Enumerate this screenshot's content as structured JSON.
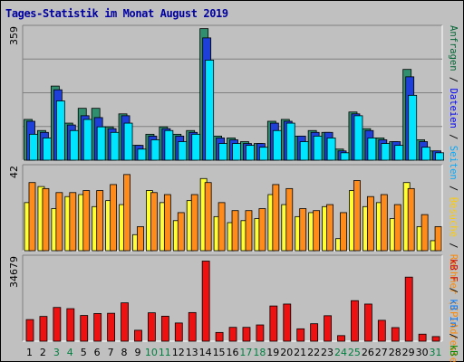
{
  "title": "Tages-Statistik im Monat August 2019",
  "right_legend": {
    "panel1": [
      {
        "label": "Anfragen",
        "color": "#006633"
      },
      {
        "label": " / ",
        "color": "#000000"
      },
      {
        "label": "Dateien",
        "color": "#0000ff"
      },
      {
        "label": " / ",
        "color": "#000000"
      },
      {
        "label": "Seiten",
        "color": "#00aaff"
      },
      {
        "label": " / ",
        "color": "#000000"
      },
      {
        "label": "Besuche",
        "color": "#ffcc00"
      },
      {
        "label": " / ",
        "color": "#000000"
      },
      {
        "label": "Rechner (IP-Adressen)",
        "color": "#ff8800"
      }
    ],
    "panel3": [
      {
        "label": "kB F",
        "color": "#cc0000"
      },
      {
        "label": " / ",
        "color": "#000000"
      },
      {
        "label": "kB In",
        "color": "#0077ff"
      },
      {
        "label": " / ",
        "color": "#000000"
      },
      {
        "label": "kB Out",
        "color": "#008800"
      }
    ]
  },
  "colors": {
    "anfragen": "#2f8f6f",
    "dateien": "#1e3fd8",
    "seiten": "#00e5ff",
    "besuche": "#ffff33",
    "rechner": "#ff8c1a",
    "kbf": "#ee1111",
    "weekend_label": "#008040",
    "weekday_label": "#000000",
    "title": "#0000a0"
  },
  "chart_data": [
    {
      "type": "bar",
      "title": "Tages-Statistik im Monat August 2019",
      "ymax_label": "359",
      "ylim": [
        0,
        359
      ],
      "categories": [
        "1",
        "2",
        "3",
        "4",
        "5",
        "6",
        "7",
        "8",
        "9",
        "10",
        "11",
        "12",
        "13",
        "14",
        "15",
        "16",
        "17",
        "18",
        "19",
        "20",
        "21",
        "22",
        "23",
        "24",
        "25",
        "26",
        "27",
        "28",
        "29",
        "30",
        "31"
      ],
      "weekend_days": [
        "3",
        "4",
        "10",
        "11",
        "17",
        "18",
        "24",
        "25",
        "31"
      ],
      "series": [
        {
          "name": "Anfragen",
          "values": [
            110,
            80,
            200,
            100,
            140,
            140,
            90,
            125,
            40,
            70,
            90,
            70,
            80,
            355,
            65,
            60,
            50,
            45,
            105,
            110,
            65,
            80,
            75,
            30,
            130,
            85,
            60,
            50,
            245,
            55,
            25
          ]
        },
        {
          "name": "Dateien",
          "values": [
            105,
            75,
            190,
            95,
            120,
            115,
            85,
            120,
            40,
            65,
            85,
            65,
            75,
            330,
            60,
            55,
            45,
            45,
            100,
            105,
            65,
            75,
            75,
            25,
            125,
            80,
            55,
            50,
            225,
            50,
            25
          ]
        },
        {
          "name": "Seiten",
          "values": [
            70,
            60,
            160,
            80,
            110,
            90,
            75,
            100,
            30,
            55,
            80,
            50,
            70,
            270,
            45,
            45,
            40,
            35,
            80,
            100,
            50,
            65,
            60,
            20,
            120,
            60,
            45,
            40,
            175,
            35,
            20
          ]
        }
      ]
    },
    {
      "type": "bar",
      "ymax_label": "42",
      "ylim": [
        0,
        42
      ],
      "categories": [
        "1",
        "2",
        "3",
        "4",
        "5",
        "6",
        "7",
        "8",
        "9",
        "10",
        "11",
        "12",
        "13",
        "14",
        "15",
        "16",
        "17",
        "18",
        "19",
        "20",
        "21",
        "22",
        "23",
        "24",
        "25",
        "26",
        "27",
        "28",
        "29",
        "30",
        "31"
      ],
      "series": [
        {
          "name": "Besuche",
          "values": [
            24,
            32,
            21,
            27,
            28,
            22,
            25,
            23,
            8,
            30,
            24,
            15,
            25,
            36,
            17,
            14,
            15,
            16,
            28,
            23,
            17,
            19,
            22,
            6,
            30,
            22,
            24,
            16,
            34,
            12,
            5
          ]
        },
        {
          "name": "Rechner (IP-Adressen)",
          "values": [
            34,
            31,
            29,
            29,
            30,
            30,
            33,
            38,
            12,
            29,
            28,
            19,
            28,
            34,
            24,
            20,
            20,
            21,
            33,
            31,
            21,
            20,
            23,
            19,
            35,
            27,
            28,
            23,
            31,
            18,
            12
          ]
        }
      ]
    },
    {
      "type": "bar",
      "ymax_label": "34679",
      "ylim": [
        0,
        34679
      ],
      "categories": [
        "1",
        "2",
        "3",
        "4",
        "5",
        "6",
        "7",
        "8",
        "9",
        "10",
        "11",
        "12",
        "13",
        "14",
        "15",
        "16",
        "17",
        "18",
        "19",
        "20",
        "21",
        "22",
        "23",
        "24",
        "25",
        "26",
        "27",
        "28",
        "29",
        "30",
        "31"
      ],
      "series": [
        {
          "name": "kB F",
          "values": [
            8900,
            10200,
            13900,
            13400,
            10600,
            11400,
            11500,
            15800,
            4500,
            11700,
            10300,
            7500,
            11800,
            33000,
            3600,
            5700,
            5700,
            6700,
            14500,
            15300,
            5100,
            7200,
            10500,
            2300,
            16700,
            15300,
            8600,
            5600,
            26400,
            2900,
            1900
          ]
        }
      ]
    }
  ]
}
